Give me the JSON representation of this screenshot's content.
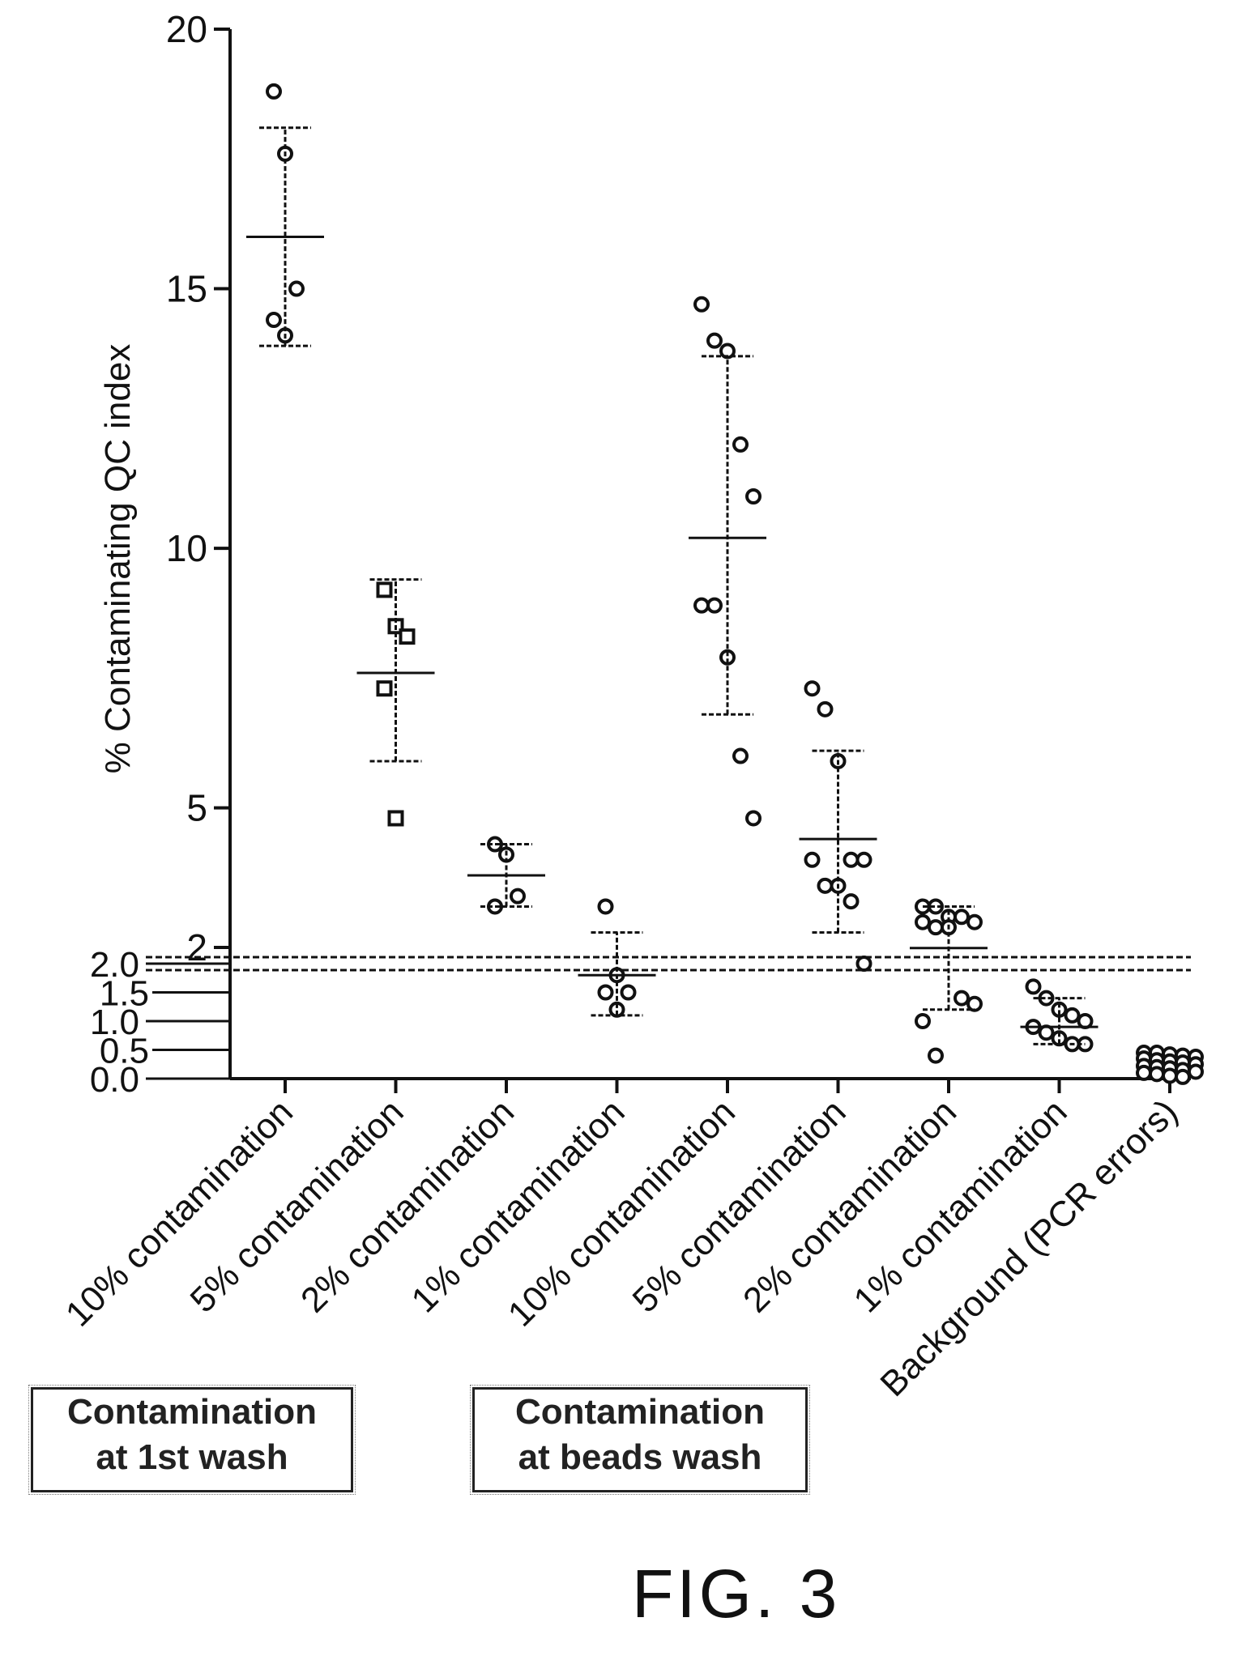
{
  "figure_label": "FIG. 3",
  "group_boxes": [
    {
      "lines": [
        "Contamination",
        "at 1st wash"
      ]
    },
    {
      "lines": [
        "Contamination",
        "at beads wash"
      ]
    }
  ],
  "colors": {
    "ink": "#111111",
    "background": "#ffffff"
  },
  "chart_data": {
    "type": "scatter",
    "title": "",
    "ylabel": "% Contaminating QC index",
    "xlabel": "",
    "axis_break": "y axis broken near 2; lower segment 0.0-2.0 shown expanded",
    "upper_ticks": [
      2,
      5,
      10,
      15,
      20
    ],
    "lower_ticks": [
      "0.0",
      "0.5",
      "1.0",
      "1.5",
      "2.0"
    ],
    "ylim": [
      0,
      20
    ],
    "grid": false,
    "legend": "none",
    "categories": [
      "10% contamination",
      "5% contamination",
      "2% contamination",
      "1% contamination",
      "10% contamination",
      "5% contamination",
      "2% contamination",
      "1% contamination",
      "Background (PCR errors)"
    ],
    "series": [
      {
        "category_index": 0,
        "marker": "circle",
        "points": [
          18.8,
          17.6,
          15.0,
          14.4,
          14.1
        ],
        "mean": 16.0,
        "sd": [
          13.9,
          18.1
        ]
      },
      {
        "category_index": 1,
        "marker": "square",
        "points": [
          9.2,
          8.5,
          8.3,
          7.3,
          4.8
        ],
        "mean": 7.6,
        "sd": [
          5.9,
          9.4
        ]
      },
      {
        "category_index": 2,
        "marker": "circle",
        "points": [
          4.3,
          4.1,
          3.3,
          3.1
        ],
        "mean": 3.7,
        "sd": [
          3.1,
          4.3
        ]
      },
      {
        "category_index": 3,
        "marker": "circle",
        "points": [
          3.1,
          1.8,
          1.5,
          1.5,
          1.2
        ],
        "mean": 1.8,
        "sd": [
          1.1,
          2.6
        ]
      },
      {
        "category_index": 4,
        "marker": "circle",
        "points": [
          14.7,
          14.0,
          13.8,
          12.0,
          11.0,
          8.9,
          8.9,
          7.9,
          6.0,
          4.8
        ],
        "mean": 10.2,
        "sd": [
          6.8,
          13.7
        ]
      },
      {
        "category_index": 5,
        "marker": "circle",
        "points": [
          7.3,
          6.9,
          5.9,
          4.0,
          4.0,
          4.0,
          3.5,
          3.5,
          3.2,
          2.0
        ],
        "mean": 4.4,
        "sd": [
          2.6,
          6.1
        ]
      },
      {
        "category_index": 6,
        "marker": "circle",
        "points": [
          3.1,
          3.1,
          2.9,
          2.9,
          2.8,
          2.8,
          2.7,
          2.7,
          1.4,
          1.3,
          1.0,
          0.4
        ],
        "mean": 2.3,
        "sd": [
          1.2,
          3.1
        ]
      },
      {
        "category_index": 7,
        "marker": "circle",
        "points": [
          1.6,
          1.4,
          1.2,
          1.1,
          1.0,
          0.9,
          0.8,
          0.7,
          0.6,
          0.6
        ],
        "mean": 0.9,
        "sd": [
          0.6,
          1.4
        ]
      },
      {
        "category_index": 8,
        "marker": "circle",
        "points": [
          0.45,
          0.45,
          0.42,
          0.4,
          0.38,
          0.35,
          0.32,
          0.3,
          0.28,
          0.25,
          0.22,
          0.2,
          0.18,
          0.15,
          0.12,
          0.1,
          0.08,
          0.05,
          0.03
        ],
        "mean": null,
        "sd": null
      }
    ]
  }
}
